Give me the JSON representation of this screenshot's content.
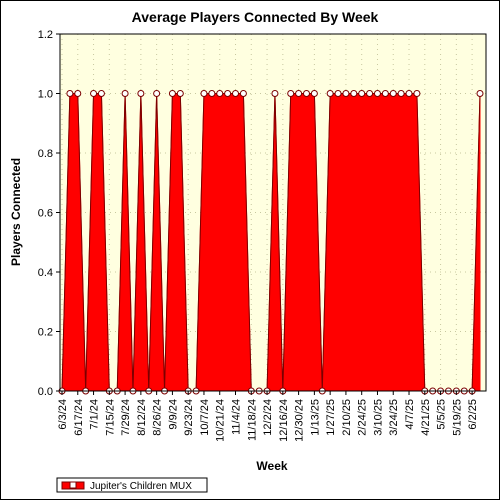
{
  "chart_data": {
    "type": "area",
    "title": "Average Players Connected By Week",
    "xlabel": "Week",
    "ylabel": "Players Connected",
    "ylim": [
      0,
      1.2
    ],
    "yticks": [
      "0.0",
      "0.2",
      "0.4",
      "0.6",
      "0.8",
      "1.0",
      "1.2"
    ],
    "x_tick_labels": [
      "6/3/24",
      "6/17/24",
      "7/1/24",
      "7/15/24",
      "7/29/24",
      "8/12/24",
      "8/26/24",
      "9/9/24",
      "9/23/24",
      "10/7/24",
      "10/21/24",
      "11/4/24",
      "11/18/24",
      "12/2/24",
      "12/16/24",
      "12/30/24",
      "1/13/25",
      "1/27/25",
      "2/10/25",
      "2/24/25",
      "3/10/25",
      "3/24/25",
      "4/7/25",
      "4/21/25",
      "5/5/25",
      "5/19/25",
      "6/2/25"
    ],
    "grid": true,
    "legend_position": "bottom-left",
    "colors": {
      "fill": "#ff0000",
      "line": "#7a0000",
      "plot_bg": "#ffffe0",
      "marker_fill": "#ffffff"
    },
    "series": [
      {
        "name": "Jupiter's Children MUX",
        "x": [
          "6/3/24",
          "6/10/24",
          "6/17/24",
          "6/24/24",
          "7/1/24",
          "7/8/24",
          "7/15/24",
          "7/22/24",
          "7/29/24",
          "8/5/24",
          "8/12/24",
          "8/19/24",
          "8/26/24",
          "9/2/24",
          "9/9/24",
          "9/16/24",
          "9/23/24",
          "9/30/24",
          "10/7/24",
          "10/14/24",
          "10/21/24",
          "10/28/24",
          "11/4/24",
          "11/11/24",
          "11/18/24",
          "11/25/24",
          "12/2/24",
          "12/9/24",
          "12/16/24",
          "12/23/24",
          "12/30/24",
          "1/6/25",
          "1/13/25",
          "1/20/25",
          "1/27/25",
          "2/3/25",
          "2/10/25",
          "2/17/25",
          "2/24/25",
          "3/3/25",
          "3/10/25",
          "3/17/25",
          "3/24/25",
          "3/31/25",
          "4/7/25",
          "4/14/25",
          "4/21/25",
          "4/28/25",
          "5/5/25",
          "5/12/25",
          "5/19/25",
          "5/26/25",
          "6/2/25",
          "6/9/25"
        ],
        "values": [
          0,
          1,
          1,
          0,
          1,
          1,
          0,
          0,
          1,
          0,
          1,
          0,
          1,
          0,
          1,
          1,
          0,
          0,
          1,
          1,
          1,
          1,
          1,
          1,
          0,
          0,
          0,
          1,
          0,
          1,
          1,
          1,
          1,
          0,
          1,
          1,
          1,
          1,
          1,
          1,
          1,
          1,
          1,
          1,
          1,
          1,
          0,
          0,
          0,
          0,
          0,
          0,
          0,
          1
        ]
      }
    ]
  }
}
